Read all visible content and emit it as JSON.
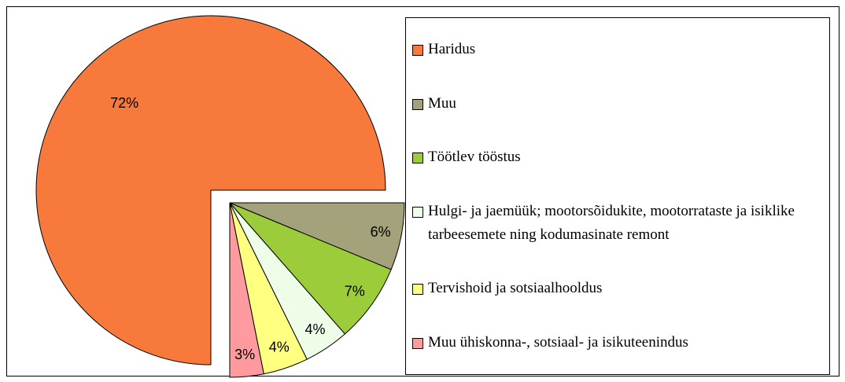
{
  "chart_data": {
    "type": "pie",
    "categories": [
      "Haridus",
      "Muu",
      "Töötlev tööstus",
      "Hulgi- ja jaemüük; mootorsõidukite, mootorrataste ja isiklike tarbeesemete ning kodumasinate remont",
      "Tervishoid ja sotsiaalhooldus",
      "Muu ühiskonna-, sotsiaal- ja isikuteenindus"
    ],
    "values": [
      72,
      6,
      7,
      4,
      4,
      3
    ],
    "value_labels": [
      "72%",
      "6%",
      "7%",
      "4%",
      "4%",
      "3%"
    ],
    "colors": [
      "#f77a3c",
      "#a3a27a",
      "#9ccc3a",
      "#eefde8",
      "#ffff80",
      "#ff9a9e"
    ],
    "legend": "right"
  }
}
